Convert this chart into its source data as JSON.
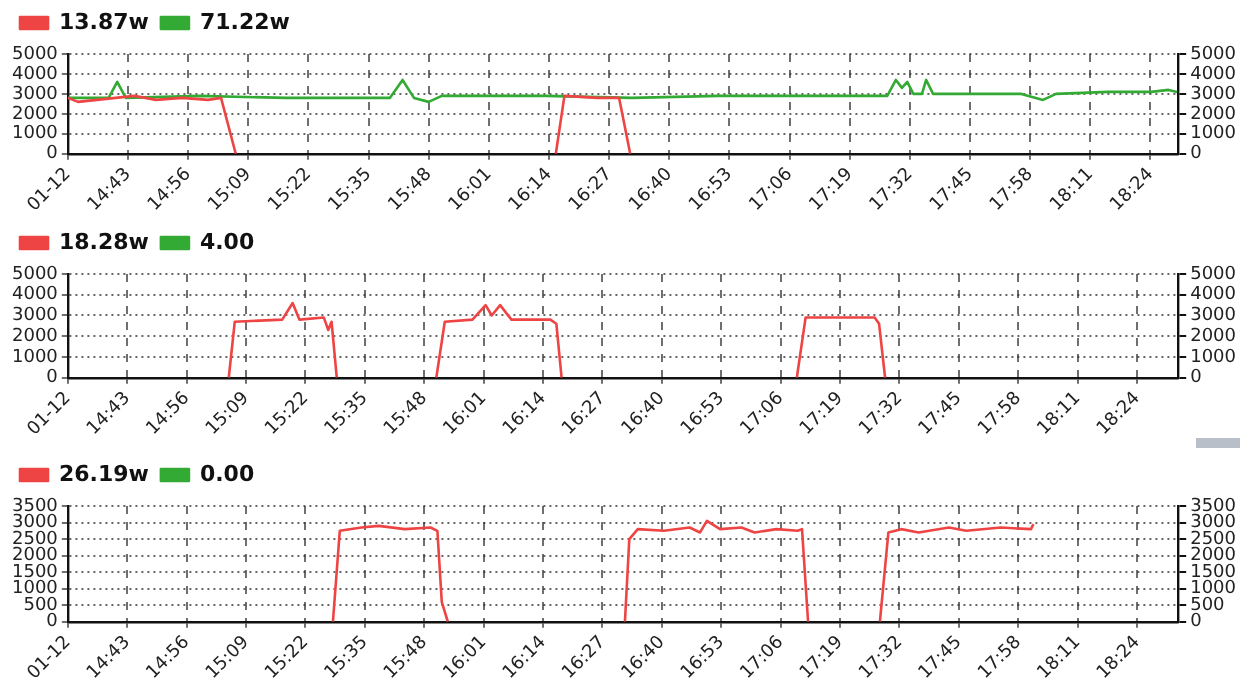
{
  "chart_data": [
    {
      "type": "line",
      "legend": "top left",
      "grid": true,
      "marker": "none",
      "line_style": "solid",
      "xlim": [
        14.5,
        18.5
      ],
      "xticks": [
        {
          "value": 14.5,
          "label": "01-12"
        },
        {
          "value": 14.7167,
          "label": "14:43"
        },
        {
          "value": 14.9333,
          "label": "14:56"
        },
        {
          "value": 15.15,
          "label": "15:09"
        },
        {
          "value": 15.3667,
          "label": "15:22"
        },
        {
          "value": 15.5833,
          "label": "15:35"
        },
        {
          "value": 15.8,
          "label": "15:48"
        },
        {
          "value": 16.0167,
          "label": "16:01"
        },
        {
          "value": 16.2333,
          "label": "16:14"
        },
        {
          "value": 16.45,
          "label": "16:27"
        },
        {
          "value": 16.6667,
          "label": "16:40"
        },
        {
          "value": 16.8833,
          "label": "16:53"
        },
        {
          "value": 17.1,
          "label": "17:06"
        },
        {
          "value": 17.3167,
          "label": "17:19"
        },
        {
          "value": 17.5333,
          "label": "17:32"
        },
        {
          "value": 17.75,
          "label": "17:45"
        },
        {
          "value": 17.9667,
          "label": "17:58"
        },
        {
          "value": 18.1833,
          "label": "18:11"
        },
        {
          "value": 18.4,
          "label": "18:24"
        }
      ],
      "ylim": [
        0,
        5000
      ],
      "yticks": [
        0,
        1000,
        2000,
        3000,
        4000,
        5000
      ],
      "y2lim": [
        0,
        5000
      ],
      "y2ticks": [
        0,
        1000,
        2000,
        3000,
        4000,
        5000
      ],
      "series": [
        {
          "name": "13.87w",
          "color": "#ee4444",
          "x": [
            14.5,
            14.537,
            14.74,
            14.818,
            14.911,
            15.005,
            15.052,
            15.105,
            15.6,
            16.258,
            16.289,
            16.408,
            16.486,
            16.526
          ],
          "values": [
            2800,
            2600,
            2900,
            2700,
            2800,
            2700,
            2800,
            0,
            null,
            0,
            2900,
            2800,
            2800,
            0
          ]
        },
        {
          "name": "71.22w",
          "color": "#33aa33",
          "x": [
            14.5,
            14.647,
            14.678,
            14.709,
            14.974,
            15.286,
            15.66,
            15.706,
            15.747,
            15.8,
            15.847,
            16.221,
            16.532,
            16.844,
            17.156,
            17.452,
            17.483,
            17.505,
            17.524,
            17.546,
            17.577,
            17.592,
            17.617,
            17.935,
            18.013,
            18.06,
            18.247,
            18.403,
            18.465,
            18.496
          ],
          "values": [
            2800,
            2800,
            3600,
            2800,
            2900,
            2800,
            2800,
            3700,
            2800,
            2600,
            2900,
            2900,
            2800,
            2900,
            2900,
            2900,
            3700,
            3300,
            3600,
            3000,
            3000,
            3700,
            3000,
            3000,
            2700,
            3000,
            3100,
            3100,
            3200,
            3100
          ]
        }
      ]
    },
    {
      "type": "line",
      "legend": "top left",
      "grid": true,
      "marker": "none",
      "line_style": "solid",
      "xlim": [
        14.5,
        18.55
      ],
      "xticks": [
        {
          "value": 14.5,
          "label": "01-12"
        },
        {
          "value": 14.7167,
          "label": "14:43"
        },
        {
          "value": 14.9333,
          "label": "14:56"
        },
        {
          "value": 15.15,
          "label": "15:09"
        },
        {
          "value": 15.3667,
          "label": "15:22"
        },
        {
          "value": 15.5833,
          "label": "15:35"
        },
        {
          "value": 15.8,
          "label": "15:48"
        },
        {
          "value": 16.0167,
          "label": "16:01"
        },
        {
          "value": 16.2333,
          "label": "16:14"
        },
        {
          "value": 16.45,
          "label": "16:27"
        },
        {
          "value": 16.6667,
          "label": "16:40"
        },
        {
          "value": 16.8833,
          "label": "16:53"
        },
        {
          "value": 17.1,
          "label": "17:06"
        },
        {
          "value": 17.3167,
          "label": "17:19"
        },
        {
          "value": 17.5333,
          "label": "17:32"
        },
        {
          "value": 17.75,
          "label": "17:45"
        },
        {
          "value": 17.9667,
          "label": "17:58"
        },
        {
          "value": 18.1833,
          "label": "18:11"
        },
        {
          "value": 18.4,
          "label": "18:24"
        }
      ],
      "ylim": [
        0,
        5000
      ],
      "yticks": [
        0,
        1000,
        2000,
        3000,
        4000,
        5000
      ],
      "y2lim": [
        0,
        5000
      ],
      "y2ticks": [
        0,
        1000,
        2000,
        3000,
        4000,
        5000
      ],
      "series": [
        {
          "name": "18.28w",
          "color": "#ee4444",
          "x": [
            15.087,
            15.109,
            15.282,
            15.32,
            15.345,
            15.434,
            15.45,
            15.462,
            15.481,
            15.6,
            15.844,
            15.875,
            15.976,
            16.024,
            16.046,
            16.077,
            16.118,
            16.26,
            16.282,
            16.301,
            16.7,
            17.159,
            17.191,
            17.443,
            17.459,
            17.481
          ],
          "values": [
            0,
            2700,
            2800,
            3600,
            2800,
            2900,
            2300,
            2700,
            0,
            null,
            0,
            2700,
            2800,
            3500,
            3000,
            3500,
            2800,
            2800,
            2600,
            0,
            null,
            0,
            2900,
            2900,
            2600,
            0
          ]
        },
        {
          "name": "4.00",
          "color": "#33aa33"
        }
      ]
    },
    {
      "type": "line",
      "legend": "top left",
      "grid": true,
      "marker": "none",
      "line_style": "solid",
      "xlim": [
        14.5,
        18.55
      ],
      "xticks": [
        {
          "value": 14.5,
          "label": "01-12"
        },
        {
          "value": 14.7167,
          "label": "14:43"
        },
        {
          "value": 14.9333,
          "label": "14:56"
        },
        {
          "value": 15.15,
          "label": "15:09"
        },
        {
          "value": 15.3667,
          "label": "15:22"
        },
        {
          "value": 15.5833,
          "label": "15:35"
        },
        {
          "value": 15.8,
          "label": "15:48"
        },
        {
          "value": 16.0167,
          "label": "16:01"
        },
        {
          "value": 16.2333,
          "label": "16:14"
        },
        {
          "value": 16.45,
          "label": "16:27"
        },
        {
          "value": 16.6667,
          "label": "16:40"
        },
        {
          "value": 16.8833,
          "label": "16:53"
        },
        {
          "value": 17.1,
          "label": "17:06"
        },
        {
          "value": 17.3167,
          "label": "17:19"
        },
        {
          "value": 17.5333,
          "label": "17:32"
        },
        {
          "value": 17.75,
          "label": "17:45"
        },
        {
          "value": 17.9667,
          "label": "17:58"
        },
        {
          "value": 18.1833,
          "label": "18:11"
        },
        {
          "value": 18.4,
          "label": "18:24"
        }
      ],
      "ylim": [
        0,
        3500
      ],
      "yticks": [
        0,
        500,
        1000,
        1500,
        2000,
        2500,
        3000,
        3500
      ],
      "y2lim": [
        0,
        3500
      ],
      "y2ticks": [
        0,
        500,
        1000,
        1500,
        2000,
        2500,
        3000,
        3500
      ],
      "series": [
        {
          "name": "26.19w",
          "color": "#ee4444",
          "x": [
            15.467,
            15.492,
            15.571,
            15.634,
            15.729,
            15.823,
            15.848,
            15.864,
            15.886,
            16.2,
            16.532,
            16.548,
            16.579,
            16.674,
            16.768,
            16.806,
            16.831,
            16.879,
            16.957,
            17.005,
            17.084,
            17.162,
            17.178,
            17.2,
            17.3,
            17.462,
            17.493,
            17.54,
            17.603,
            17.714,
            17.777,
            17.903,
            18.013,
            18.022
          ],
          "values": [
            0,
            2750,
            2850,
            2900,
            2800,
            2850,
            2750,
            600,
            0,
            null,
            0,
            2500,
            2800,
            2750,
            2850,
            2700,
            3050,
            2800,
            2850,
            2700,
            2800,
            2750,
            2800,
            0,
            null,
            0,
            2700,
            2800,
            2700,
            2850,
            2750,
            2850,
            2800,
            2950
          ]
        },
        {
          "name": "0.00",
          "color": "#33aa33"
        }
      ]
    }
  ]
}
